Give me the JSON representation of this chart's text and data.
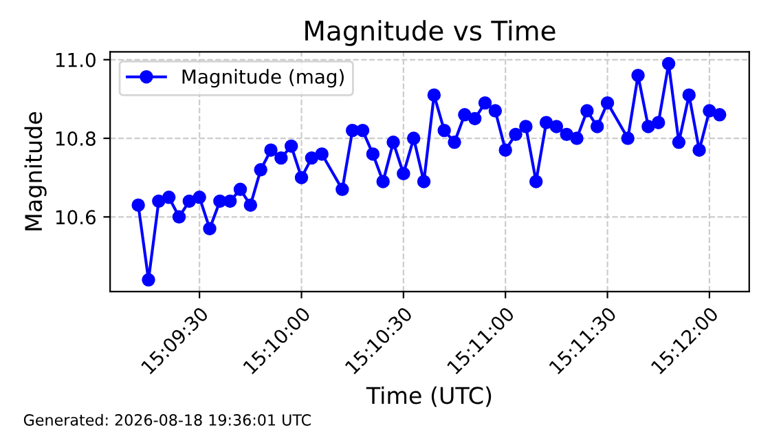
{
  "chart_data": {
    "type": "line",
    "title": "Magnitude vs Time",
    "xlabel": "Time (UTC)",
    "ylabel": "Magnitude",
    "annotations": [
      "Generated: 2026-08-18 19:36:01 UTC"
    ],
    "x": [
      15.153333,
      15.154167,
      15.155,
      15.155833,
      15.156667,
      15.1575,
      15.158333,
      15.159167,
      15.16,
      15.160833,
      15.161667,
      15.1625,
      15.163333,
      15.164167,
      15.165,
      15.165833,
      15.166667,
      15.1675,
      15.168333,
      15.17,
      15.170833,
      15.171667,
      15.1725,
      15.173333,
      15.174167,
      15.175,
      15.175833,
      15.176667,
      15.1775,
      15.178333,
      15.179167,
      15.18,
      15.180833,
      15.181667,
      15.1825,
      15.183333,
      15.184167,
      15.185,
      15.185833,
      15.186667,
      15.1875,
      15.188333,
      15.189167,
      15.19,
      15.190833,
      15.191667,
      15.193333,
      15.194167,
      15.195,
      15.195833,
      15.196667,
      15.1975,
      15.198333,
      15.199167,
      15.2,
      15.200833
    ],
    "series": [
      {
        "name": "Magnitude (mag)",
        "color": "#0000ff",
        "values": [
          10.63,
          10.44,
          10.64,
          10.65,
          10.6,
          10.64,
          10.65,
          10.57,
          10.64,
          10.64,
          10.67,
          10.63,
          10.72,
          10.77,
          10.75,
          10.78,
          10.7,
          10.75,
          10.76,
          10.67,
          10.82,
          10.82,
          10.76,
          10.69,
          10.79,
          10.71,
          10.8,
          10.69,
          10.91,
          10.82,
          10.79,
          10.86,
          10.85,
          10.89,
          10.87,
          10.77,
          10.81,
          10.83,
          10.69,
          10.84,
          10.83,
          10.81,
          10.8,
          10.87,
          10.83,
          10.89,
          10.8,
          10.96,
          10.83,
          10.84,
          10.99,
          10.79,
          10.91,
          10.77,
          10.87,
          10.86
        ]
      }
    ],
    "xlim": [
      15.15103,
      15.20325
    ],
    "xticks": [
      {
        "value": 15.158333,
        "label": "15:09:30"
      },
      {
        "value": 15.166667,
        "label": "15:10:00"
      },
      {
        "value": 15.175,
        "label": "15:10:30"
      },
      {
        "value": 15.183333,
        "label": "15:11:00"
      },
      {
        "value": 15.191667,
        "label": "15:11:30"
      },
      {
        "value": 15.2,
        "label": "15:12:00"
      }
    ],
    "ylim": [
      10.41,
      11.02
    ],
    "yticks": [
      10.6,
      10.8,
      {
        "value": 11.0,
        "label": "11.0"
      }
    ],
    "grid": true,
    "legend": "top left",
    "marker": "circle",
    "line_style": "solid"
  }
}
